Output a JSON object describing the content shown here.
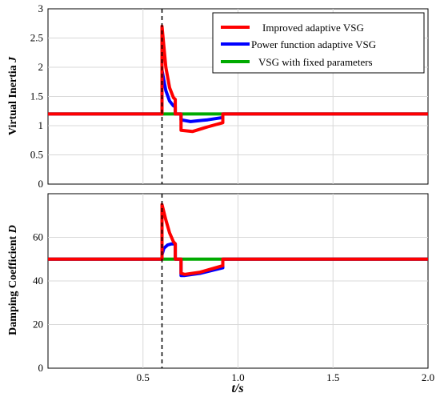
{
  "chart_data": [
    {
      "type": "line",
      "ylabel": "Virtual Inertia",
      "ylabel_symbol": "J",
      "xlim": [
        0,
        2.0
      ],
      "ylim": [
        0,
        3
      ],
      "yticks": [
        "0",
        "0.5",
        "1",
        "1.5",
        "2",
        "2.5",
        "3"
      ],
      "grid": true,
      "legend_position": "top-right",
      "event_marker_x": 0.6,
      "series": [
        {
          "name": "Improved adaptive VSG",
          "color": "#ff0000",
          "x": [
            0,
            0.6,
            0.6,
            0.62,
            0.64,
            0.66,
            0.67,
            0.67,
            0.7,
            0.7,
            0.76,
            0.84,
            0.92,
            0.92,
            2.0
          ],
          "y": [
            1.2,
            1.2,
            2.7,
            2.0,
            1.65,
            1.48,
            1.45,
            1.2,
            1.2,
            0.92,
            0.9,
            0.98,
            1.05,
            1.2,
            1.2
          ]
        },
        {
          "name": "Power function adaptive VSG",
          "color": "#0000ff",
          "x": [
            0,
            0.6,
            0.6,
            0.62,
            0.64,
            0.66,
            0.67,
            0.67,
            0.7,
            0.7,
            0.75,
            0.84,
            0.92,
            0.92,
            2.0
          ],
          "y": [
            1.2,
            1.2,
            1.95,
            1.6,
            1.42,
            1.34,
            1.32,
            1.2,
            1.2,
            1.1,
            1.07,
            1.1,
            1.14,
            1.2,
            1.2
          ]
        },
        {
          "name": "VSG with fixed parameters",
          "color": "#00aa00",
          "x": [
            0,
            2.0
          ],
          "y": [
            1.2,
            1.2
          ]
        }
      ]
    },
    {
      "type": "line",
      "ylabel": "Damping Coefficient",
      "ylabel_symbol": "D",
      "xlabel": "t/s",
      "xlim": [
        0,
        2.0
      ],
      "ylim": [
        0,
        80
      ],
      "xticks": [
        "0.5",
        "1.0",
        "1.5",
        "2.0"
      ],
      "yticks": [
        "0",
        "20",
        "40",
        "60"
      ],
      "grid": true,
      "event_marker_x": 0.6,
      "series": [
        {
          "name": "Improved adaptive VSG",
          "color": "#ff0000",
          "x": [
            0,
            0.6,
            0.6,
            0.62,
            0.64,
            0.66,
            0.67,
            0.67,
            0.7,
            0.7,
            0.72,
            0.8,
            0.92,
            0.92,
            2.0
          ],
          "y": [
            50,
            50,
            75,
            68,
            62,
            58,
            57,
            50,
            50,
            43.5,
            43,
            44,
            47,
            50,
            50
          ]
        },
        {
          "name": "Power function adaptive VSG",
          "color": "#0000ff",
          "x": [
            0,
            0.6,
            0.6,
            0.61,
            0.63,
            0.65,
            0.67,
            0.67,
            0.7,
            0.7,
            0.72,
            0.8,
            0.92,
            0.92,
            2.0
          ],
          "y": [
            50,
            50,
            52,
            55,
            56.5,
            57,
            57,
            50,
            50,
            42.5,
            42.5,
            43.5,
            46,
            50,
            50
          ]
        },
        {
          "name": "VSG with fixed parameters",
          "color": "#00aa00",
          "x": [
            0,
            2.0
          ],
          "y": [
            50,
            50
          ]
        }
      ]
    }
  ]
}
